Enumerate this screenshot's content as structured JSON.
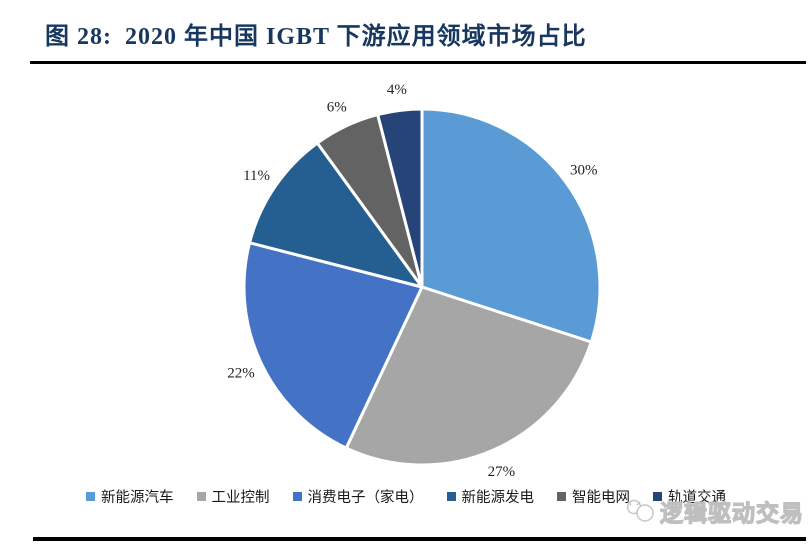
{
  "header": {
    "figure_label": "图 28:",
    "title": "2020 年中国 IGBT 下游应用领域市场占比",
    "title_color": "#17375E"
  },
  "chart_data": {
    "type": "pie",
    "title": "2020 年中国 IGBT 下游应用领域市场占比",
    "categories": [
      "新能源汽车",
      "工业控制",
      "消费电子（家电）",
      "新能源发电",
      "智能电网",
      "轨道交通"
    ],
    "values": [
      30,
      27,
      22,
      11,
      6,
      4
    ],
    "labels": [
      "30%",
      "27%",
      "22%",
      "11%",
      "6%",
      "4%"
    ],
    "unit": "%",
    "colors": [
      "#5B9BD5",
      "#A6A6A6",
      "#4472C4",
      "#255E91",
      "#636363",
      "#264478"
    ],
    "start_angle_deg": 0,
    "direction": "clockwise",
    "slice_border_color": "#FFFFFF",
    "legend_position": "bottom",
    "label_position": "outside"
  },
  "watermark": {
    "text": "逻辑驱动交易"
  }
}
